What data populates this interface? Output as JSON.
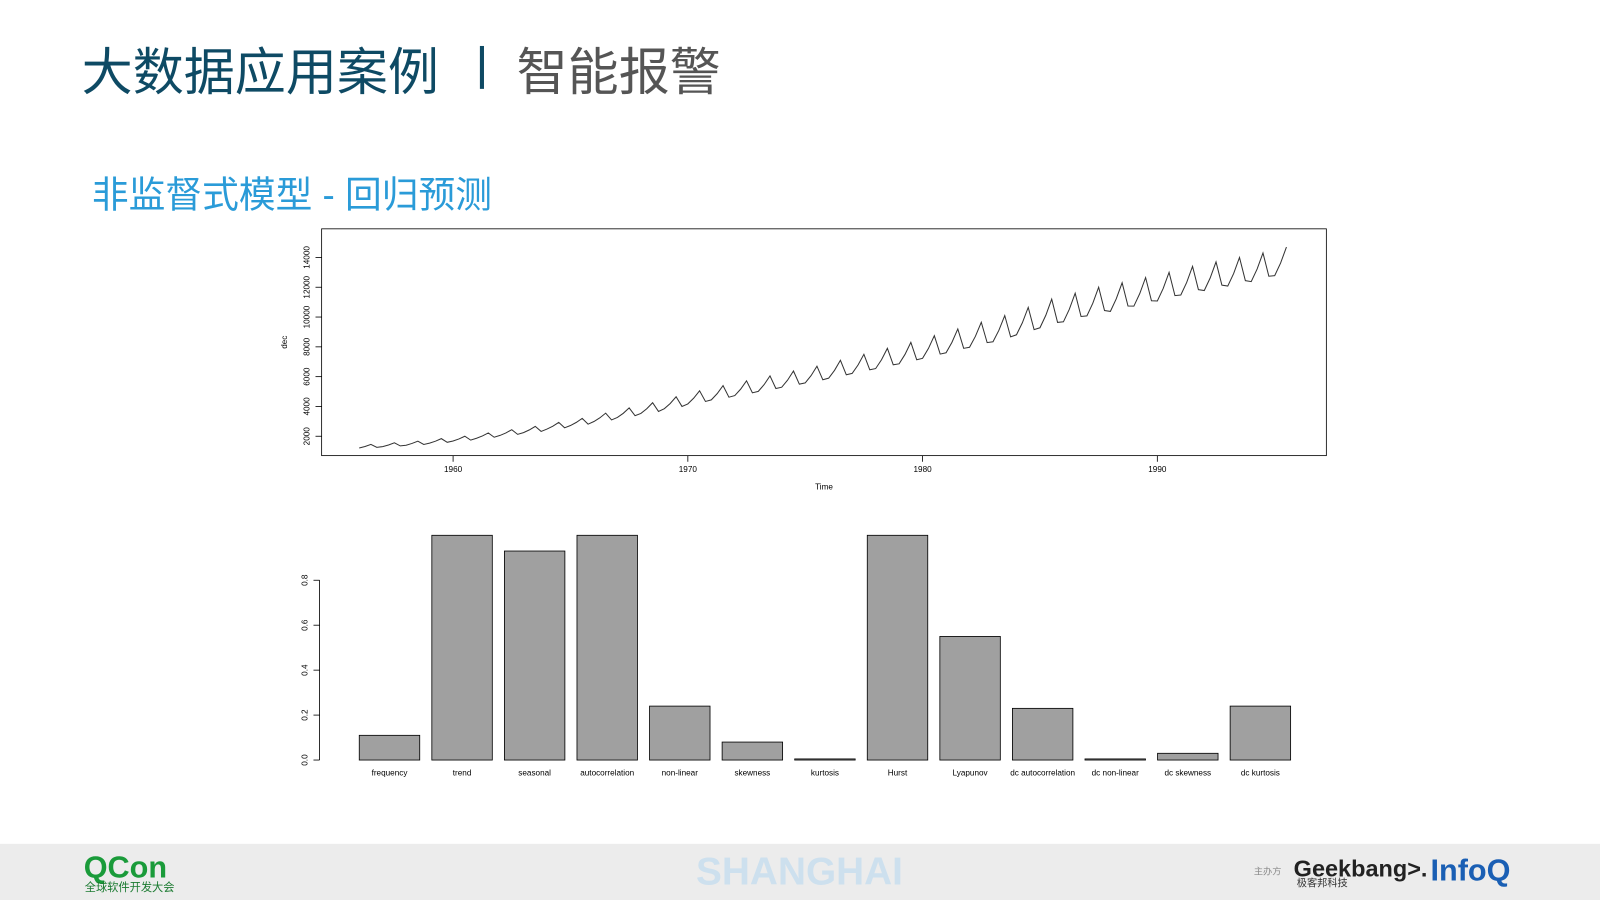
{
  "header": {
    "title": "大数据应用案例",
    "topic": "智能报警"
  },
  "subtitle": "非监督式模型 - 回归预测",
  "chart_data": [
    {
      "type": "line",
      "xlabel": "Time",
      "ylabel": "dec",
      "color": "#333333",
      "xlim": [
        1954.4,
        1997.2
      ],
      "xticks": [
        1960,
        1970,
        1980,
        1990
      ],
      "ylim": [
        700,
        15920
      ],
      "yticks": [
        2000,
        4000,
        6000,
        8000,
        10000,
        12000,
        14000
      ],
      "x": [
        1956,
        1956.25,
        1956.5,
        1956.75,
        1957,
        1957.25,
        1957.5,
        1957.75,
        1958,
        1958.25,
        1958.5,
        1958.75,
        1959,
        1959.25,
        1959.5,
        1959.75,
        1960,
        1960.25,
        1960.5,
        1960.75,
        1961,
        1961.25,
        1961.5,
        1961.75,
        1962,
        1962.25,
        1962.5,
        1962.75,
        1963,
        1963.25,
        1963.5,
        1963.75,
        1964,
        1964.25,
        1964.5,
        1964.75,
        1965,
        1965.25,
        1965.5,
        1965.75,
        1966,
        1966.25,
        1966.5,
        1966.75,
        1967,
        1967.25,
        1967.5,
        1967.75,
        1968,
        1968.25,
        1968.5,
        1968.75,
        1969,
        1969.25,
        1969.5,
        1969.75,
        1970,
        1970.25,
        1970.5,
        1970.75,
        1971,
        1971.25,
        1971.5,
        1971.75,
        1972,
        1972.25,
        1972.5,
        1972.75,
        1973,
        1973.25,
        1973.5,
        1973.75,
        1974,
        1974.25,
        1974.5,
        1974.75,
        1975,
        1975.25,
        1975.5,
        1975.75,
        1976,
        1976.25,
        1976.5,
        1976.75,
        1977,
        1977.25,
        1977.5,
        1977.75,
        1978,
        1978.25,
        1978.5,
        1978.75,
        1979,
        1979.25,
        1979.5,
        1979.75,
        1980,
        1980.25,
        1980.5,
        1980.75,
        1981,
        1981.25,
        1981.5,
        1981.75,
        1982,
        1982.25,
        1982.5,
        1982.75,
        1983,
        1983.25,
        1983.5,
        1983.75,
        1984,
        1984.25,
        1984.5,
        1984.75,
        1985,
        1985.25,
        1985.5,
        1985.75,
        1986,
        1986.25,
        1986.5,
        1986.75,
        1987,
        1987.25,
        1987.5,
        1987.75,
        1988,
        1988.25,
        1988.5,
        1988.75,
        1989,
        1989.25,
        1989.5,
        1989.75,
        1990,
        1990.25,
        1990.5,
        1990.75,
        1991,
        1991.25,
        1991.5,
        1991.75,
        1992,
        1992.25,
        1992.5,
        1992.75,
        1993,
        1993.25,
        1993.5,
        1993.75,
        1994,
        1994.25,
        1994.5,
        1994.75,
        1995,
        1995.25,
        1995.5
      ],
      "values": [
        1210,
        1315,
        1450,
        1255,
        1304,
        1416,
        1560,
        1352,
        1398,
        1517,
        1670,
        1449,
        1536,
        1669,
        1840,
        1593,
        1680,
        1820,
        2000,
        1740,
        1868,
        2022,
        2220,
        1934,
        2056,
        2224,
        2440,
        2128,
        2244,
        2426,
        2660,
        2322,
        2482,
        2678,
        2930,
        2566,
        2720,
        2930,
        3200,
        2810,
        2990,
        3235,
        3550,
        3095,
        3260,
        3540,
        3900,
        3380,
        3530,
        3845,
        4250,
        3665,
        3850,
        4200,
        4650,
        4000,
        4170,
        4555,
        5050,
        4335,
        4440,
        4860,
        5400,
        4620,
        4728,
        5162,
        5720,
        4914,
        5010,
        5465,
        6050,
        5205,
        5292,
        5768,
        6380,
        5496,
        5580,
        6070,
        6700,
        5790,
        5900,
        6425,
        7100,
        6125,
        6220,
        6780,
        7500,
        6460,
        6540,
        7135,
        7900,
        6795,
        6860,
        7490,
        8300,
        7130,
        7230,
        7895,
        8750,
        7515,
        7600,
        8300,
        9200,
        7900,
        7970,
        8705,
        9650,
        8285,
        8340,
        9110,
        10100,
        8670,
        8810,
        9615,
        10650,
        9155,
        9280,
        10120,
        11200,
        9640,
        9680,
        10520,
        11600,
        10040,
        10080,
        10920,
        12000,
        10440,
        10380,
        11220,
        12300,
        10740,
        10730,
        11570,
        12650,
        11090,
        11080,
        11920,
        13000,
        11440,
        11480,
        12320,
        13400,
        11840,
        11780,
        12620,
        13700,
        12140,
        12080,
        12920,
        14000,
        12440,
        12380,
        13220,
        14300,
        12740,
        12780,
        13620,
        14700
      ]
    },
    {
      "type": "bar",
      "color": "#a0a0a0",
      "categories": [
        "frequency",
        "trend",
        "seasonal",
        "autocorrelation",
        "non-linear",
        "skewness",
        "kurtosis",
        "Hurst",
        "Lyapunov",
        "dc autocorrelation",
        "dc non-linear",
        "dc skewness",
        "dc kurtosis"
      ],
      "values": [
        0.11,
        1.0,
        0.93,
        1.0,
        0.24,
        0.08,
        0.005,
        1.0,
        0.55,
        0.23,
        0.005,
        0.03,
        0.24
      ],
      "ylim": [
        0,
        1.0
      ],
      "yticks": [
        {
          "value": 0,
          "label": "0.0"
        },
        0.2,
        0.4,
        0.6,
        0.8
      ]
    }
  ],
  "footer": {
    "brand": "QCon",
    "brand_sub": "全球软件开发大会",
    "city": "SHANGHAI",
    "organizer": "主办方",
    "sponsor": "Geekbang>.",
    "sponsor_sub": "极客邦科技",
    "media": "InfoQ"
  }
}
